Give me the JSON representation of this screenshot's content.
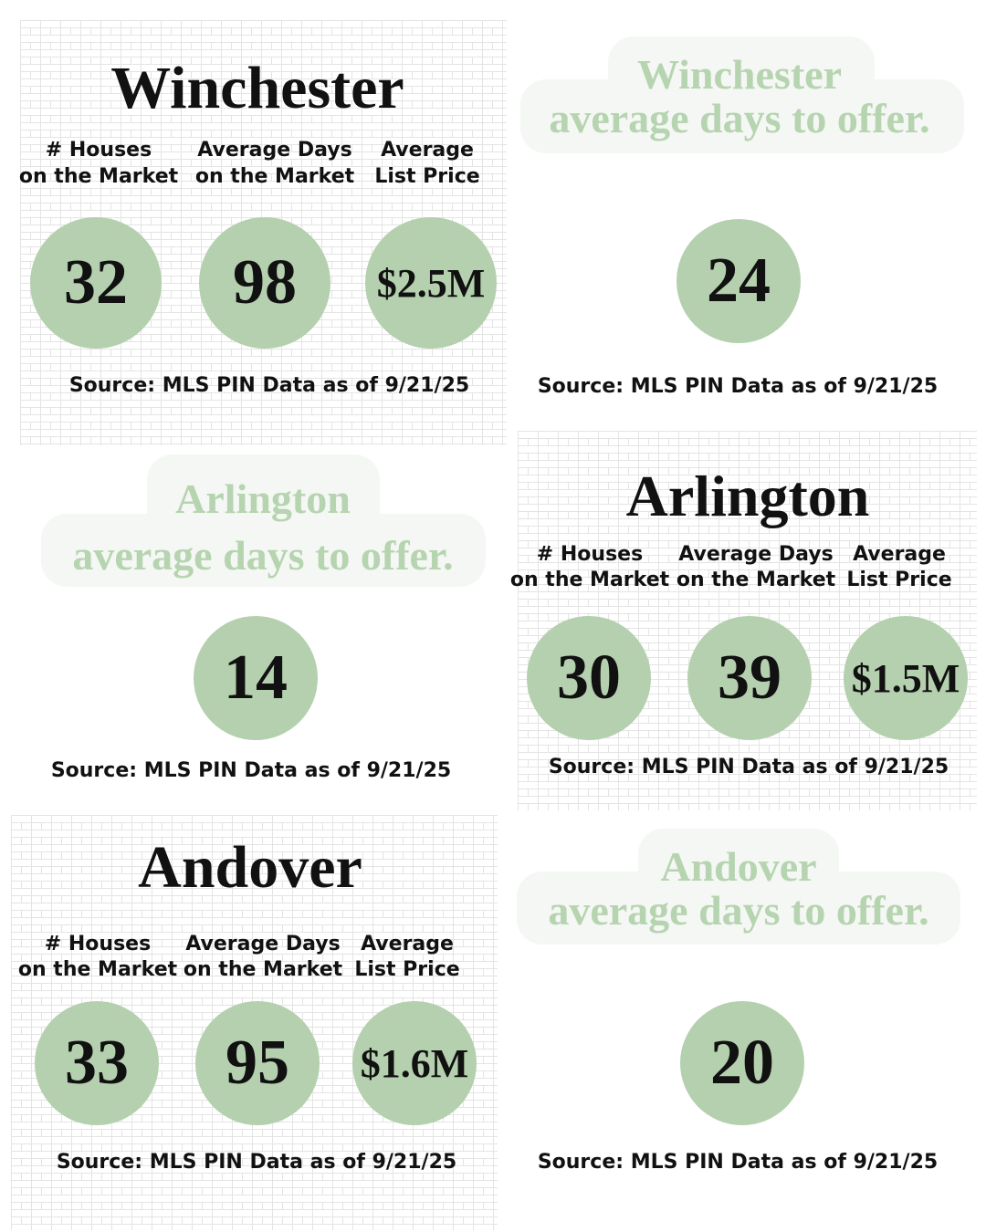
{
  "labels": {
    "houses_1": "# Houses",
    "houses_2": "on the Market",
    "days_1": "Average Days",
    "days_2": "on the Market",
    "price_1": "Average",
    "price_2": "List Price"
  },
  "source": "Source: MLS PIN Data as of 9/21/25",
  "offer_suffix": "average days to offer.",
  "colors": {
    "circle": "#b4d0ae",
    "banner_bg": "#f4f7f3",
    "banner_text": "#b6d4b0"
  },
  "towns": [
    {
      "name": "Winchester",
      "houses": "32",
      "days": "98",
      "price": "$2.5M",
      "days_to_offer": "24"
    },
    {
      "name": "Arlington",
      "houses": "30",
      "days": "39",
      "price": "$1.5M",
      "days_to_offer": "14"
    },
    {
      "name": "Andover",
      "houses": "33",
      "days": "95",
      "price": "$1.6M",
      "days_to_offer": "20"
    }
  ]
}
